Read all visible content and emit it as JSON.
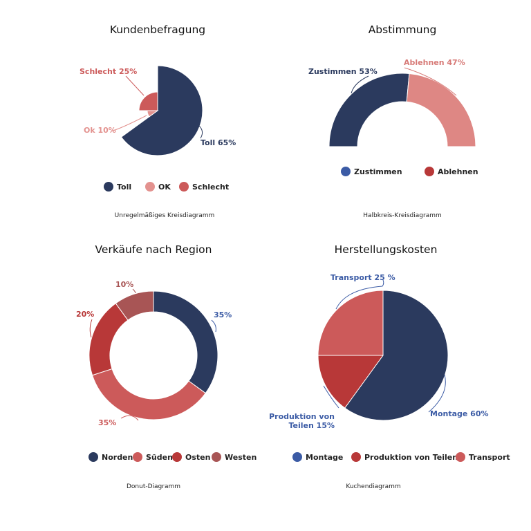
{
  "chart_data": [
    {
      "type": "pie",
      "variant": "irregular-radius",
      "title": "Kundenbefragung",
      "caption": "Unregelmäßiges Kreisdiagramm",
      "categories": [
        "Toll",
        "OK",
        "Schlecht"
      ],
      "values": [
        65,
        10,
        25
      ],
      "data_labels": [
        "Toll 65%",
        "Ok 10%",
        "Schlecht 25%"
      ],
      "colors": [
        "#2b3a5e",
        "#e3928f",
        "#cc5a5a"
      ],
      "legend_colors": [
        "#2b3a5e",
        "#e3928f",
        "#cc5a5a"
      ],
      "legend": "bottom"
    },
    {
      "type": "pie",
      "variant": "semicircle-donut",
      "title": "Abstimmung",
      "caption": "Halbkreis-Kreisdiagramm",
      "categories": [
        "Zustimmen",
        "Ablehnen"
      ],
      "values": [
        53,
        47
      ],
      "data_labels": [
        "Zustimmen 53%",
        "Ablehnen 47%"
      ],
      "colors": [
        "#2b3a5e",
        "#de8784"
      ],
      "legend_colors": [
        "#3b5ba5",
        "#b83838"
      ],
      "label_colors": [
        "#2b3a5e",
        "#d77a77"
      ],
      "legend": "bottom"
    },
    {
      "type": "pie",
      "variant": "donut",
      "title": "Verkäufe nach Region",
      "caption": "Donut-Diagramm",
      "categories": [
        "Norden",
        "Süden",
        "Osten",
        "Westen"
      ],
      "values": [
        35,
        35,
        20,
        10
      ],
      "data_labels": [
        "35%",
        "35%",
        "20%",
        "10%"
      ],
      "colors": [
        "#2b3a5e",
        "#cc5a5a",
        "#b83838",
        "#a85555"
      ],
      "legend_colors": [
        "#2b3a5e",
        "#cc5a5a",
        "#b83838",
        "#a85555"
      ],
      "label_colors": [
        "#3b5ba5",
        "#cc5a5a",
        "#b83838",
        "#a85555"
      ],
      "legend": "bottom"
    },
    {
      "type": "pie",
      "title": "Herstellungskosten",
      "caption": "Kuchendiagramm",
      "categories": [
        "Montage",
        "Produktion von Teilen",
        "Transport"
      ],
      "values": [
        60,
        15,
        25
      ],
      "data_labels": [
        "Montage 60%",
        "Produktion von Teilen 15%",
        "Transport 25 %"
      ],
      "data_label_lines": [
        [
          "Montage 60%"
        ],
        [
          "Produktion von",
          "Teilen 15%"
        ],
        [
          "Transport 25 %"
        ]
      ],
      "colors": [
        "#2b3a5e",
        "#b83838",
        "#cc5a5a"
      ],
      "legend_colors": [
        "#3b5ba5",
        "#b83838",
        "#cc5a5a"
      ],
      "label_color": "#3b5ba5",
      "legend": "bottom"
    }
  ]
}
